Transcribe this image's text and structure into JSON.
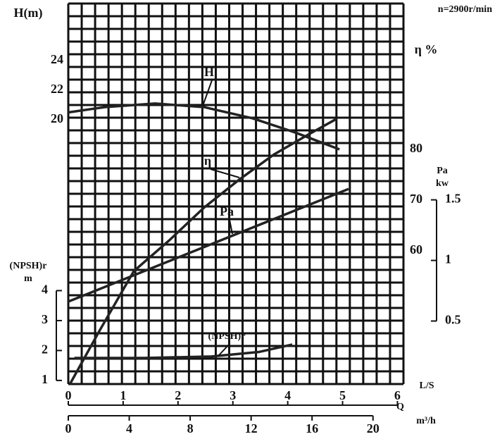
{
  "chart_data": {
    "type": "line",
    "title": "n=2900r/min",
    "xlabel": "Q",
    "xaxis": {
      "label": "m³/h",
      "lim": [
        0,
        22
      ],
      "ticks": [
        0,
        4,
        8,
        12,
        16,
        20
      ]
    },
    "x2axis": {
      "label": "L/S",
      "lim": [
        0,
        6.11
      ],
      "ticks": [
        0,
        1,
        2,
        3,
        4,
        5,
        6
      ]
    },
    "axes": [
      {
        "id": "h",
        "label": [
          "H(m)"
        ],
        "lim": [
          2.14,
          27.86
        ],
        "ticks": [
          20,
          22,
          24
        ]
      },
      {
        "id": "eta",
        "label": [
          "η %"
        ],
        "lim": [
          33.75,
          108.75
        ],
        "ticks": [
          60,
          70,
          80
        ]
      },
      {
        "id": "pa",
        "label": [
          "Pa",
          "kw"
        ],
        "lim": [
          -0.02,
          3.12
        ],
        "ticks": [
          0.5,
          1,
          1.5
        ]
      },
      {
        "id": "npsh",
        "label": [
          "(NPSH)r",
          "m"
        ],
        "lim": [
          0.88,
          13.59
        ],
        "ticks": [
          1,
          2,
          3,
          4
        ]
      }
    ],
    "grid": true,
    "series": [
      {
        "name": "H",
        "axis": "h",
        "color": "#222222",
        "x": [
          0,
          2.4,
          5.7,
          8.9,
          12.1,
          14.9,
          17.8
        ],
        "values": [
          20.5,
          20.86,
          21.1,
          20.86,
          20.1,
          19.14,
          18
        ]
      },
      {
        "name": "η",
        "axis": "eta",
        "color": "#222222",
        "x": [
          0.1,
          2,
          4.3,
          6.6,
          8.9,
          11.2,
          13.5,
          15.8,
          17.6
        ],
        "values": [
          33.7,
          44,
          56,
          62,
          68.5,
          74,
          79,
          83,
          86
        ]
      },
      {
        "name": "Pa",
        "axis": "pa",
        "color": "#222222",
        "x": [
          0,
          18.4
        ],
        "values": [
          0.66,
          1.59
        ]
      },
      {
        "name": "(NPSH)r",
        "axis": "npsh",
        "color": "#222222",
        "x": [
          0.4,
          5,
          9.4,
          12.5,
          14.7
        ],
        "values": [
          1.75,
          1.75,
          1.8,
          1.95,
          2.2
        ]
      }
    ]
  }
}
